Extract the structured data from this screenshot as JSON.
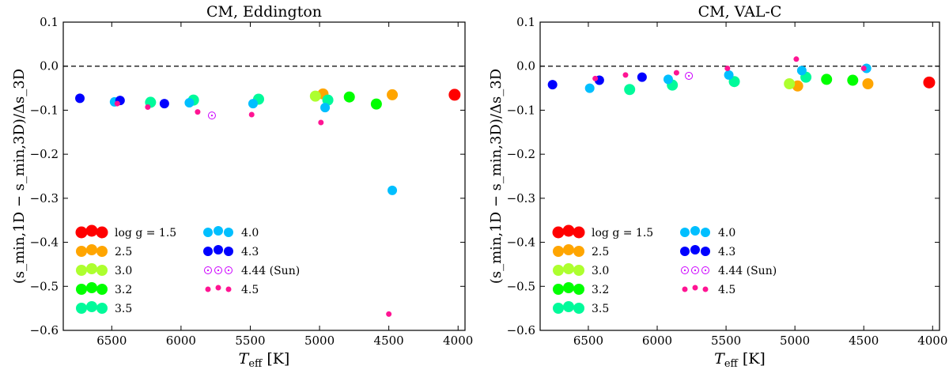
{
  "chart_data": [
    {
      "type": "scatter",
      "title": "CM, Eddington",
      "xlabel": "T_eff [K]",
      "xlabel_main": "T",
      "xlabel_sub": "eff",
      "xlabel_unit": " [K]",
      "ylabel": "(s_min,1D − s_min,3D)/Δs_3D",
      "xlim": [
        6850,
        3950
      ],
      "ylim": [
        -0.6,
        0.1
      ],
      "xticks": [
        6500,
        6000,
        5500,
        5000,
        4500,
        4000
      ],
      "yticks": [
        0.1,
        0.0,
        -0.1,
        -0.2,
        -0.3,
        -0.4,
        -0.5,
        -0.6
      ],
      "xtick_labels": [
        "6500",
        "6000",
        "5500",
        "5000",
        "4500",
        "4000"
      ],
      "ytick_labels": [
        "0.1",
        "0.0",
        "−0.1",
        "−0.2",
        "−0.3",
        "−0.4",
        "−0.5",
        "−0.6"
      ],
      "reference_line": 0.0,
      "points": [
        {
          "teff": 4025,
          "logg": "1.5",
          "y": -0.065
        },
        {
          "teff": 4975,
          "logg": "2.5",
          "y": -0.063
        },
        {
          "teff": 4475,
          "logg": "2.5",
          "y": -0.065
        },
        {
          "teff": 5030,
          "logg": "3.0",
          "y": -0.068
        },
        {
          "teff": 4785,
          "logg": "3.2",
          "y": -0.07
        },
        {
          "teff": 4590,
          "logg": "3.2",
          "y": -0.086
        },
        {
          "teff": 6220,
          "logg": "3.5",
          "y": -0.082
        },
        {
          "teff": 5910,
          "logg": "3.5",
          "y": -0.077
        },
        {
          "teff": 5440,
          "logg": "3.5",
          "y": -0.075
        },
        {
          "teff": 4940,
          "logg": "3.5",
          "y": -0.077
        },
        {
          "teff": 6480,
          "logg": "4.0",
          "y": -0.081
        },
        {
          "teff": 5940,
          "logg": "4.0",
          "y": -0.083
        },
        {
          "teff": 5480,
          "logg": "4.0",
          "y": -0.085
        },
        {
          "teff": 4960,
          "logg": "4.0",
          "y": -0.094
        },
        {
          "teff": 4475,
          "logg": "4.0",
          "y": -0.282
        },
        {
          "teff": 6730,
          "logg": "4.3",
          "y": -0.073
        },
        {
          "teff": 6440,
          "logg": "4.3",
          "y": -0.078
        },
        {
          "teff": 6120,
          "logg": "4.3",
          "y": -0.085
        },
        {
          "teff": 5777,
          "logg": "4.44",
          "y": -0.112
        },
        {
          "teff": 6460,
          "logg": "4.5",
          "y": -0.085
        },
        {
          "teff": 6240,
          "logg": "4.5",
          "y": -0.093
        },
        {
          "teff": 5880,
          "logg": "4.5",
          "y": -0.104
        },
        {
          "teff": 5490,
          "logg": "4.5",
          "y": -0.11
        },
        {
          "teff": 4990,
          "logg": "4.5",
          "y": -0.128
        },
        {
          "teff": 4500,
          "logg": "4.5",
          "y": -0.563
        }
      ]
    },
    {
      "type": "scatter",
      "title": "CM, VAL-C",
      "xlabel": "T_eff [K]",
      "xlabel_main": "T",
      "xlabel_sub": "eff",
      "xlabel_unit": " [K]",
      "ylabel": "(s_min,1D − s_min,3D)/Δs_3D",
      "xlim": [
        6850,
        3950
      ],
      "ylim": [
        -0.6,
        0.1
      ],
      "xticks": [
        6500,
        6000,
        5500,
        5000,
        4500,
        4000
      ],
      "yticks": [
        0.1,
        0.0,
        -0.1,
        -0.2,
        -0.3,
        -0.4,
        -0.5,
        -0.6
      ],
      "xtick_labels": [
        "6500",
        "6000",
        "5500",
        "5000",
        "4500",
        "4000"
      ],
      "ytick_labels": [
        "0.1",
        "0.0",
        "−0.1",
        "−0.2",
        "−0.3",
        "−0.4",
        "−0.5",
        "−0.6"
      ],
      "reference_line": 0.0,
      "points": [
        {
          "teff": 4025,
          "logg": "1.5",
          "y": -0.037
        },
        {
          "teff": 4980,
          "logg": "2.5",
          "y": -0.045
        },
        {
          "teff": 4470,
          "logg": "2.5",
          "y": -0.04
        },
        {
          "teff": 5040,
          "logg": "3.0",
          "y": -0.04
        },
        {
          "teff": 4770,
          "logg": "3.2",
          "y": -0.03
        },
        {
          "teff": 4580,
          "logg": "3.2",
          "y": -0.032
        },
        {
          "teff": 6200,
          "logg": "3.5",
          "y": -0.053
        },
        {
          "teff": 5890,
          "logg": "3.5",
          "y": -0.043
        },
        {
          "teff": 5440,
          "logg": "3.5",
          "y": -0.035
        },
        {
          "teff": 4920,
          "logg": "3.5",
          "y": -0.025
        },
        {
          "teff": 6490,
          "logg": "4.0",
          "y": -0.05
        },
        {
          "teff": 5920,
          "logg": "4.0",
          "y": -0.03
        },
        {
          "teff": 5480,
          "logg": "4.0",
          "y": -0.02
        },
        {
          "teff": 4950,
          "logg": "4.0",
          "y": -0.01
        },
        {
          "teff": 4480,
          "logg": "4.0",
          "y": -0.005
        },
        {
          "teff": 6760,
          "logg": "4.3",
          "y": -0.042
        },
        {
          "teff": 6420,
          "logg": "4.3",
          "y": -0.032
        },
        {
          "teff": 6110,
          "logg": "4.3",
          "y": -0.025
        },
        {
          "teff": 5770,
          "logg": "4.44",
          "y": -0.022
        },
        {
          "teff": 6450,
          "logg": "4.5",
          "y": -0.028
        },
        {
          "teff": 6230,
          "logg": "4.5",
          "y": -0.02
        },
        {
          "teff": 5860,
          "logg": "4.5",
          "y": -0.015
        },
        {
          "teff": 5490,
          "logg": "4.5",
          "y": -0.005
        },
        {
          "teff": 4990,
          "logg": "4.5",
          "y": 0.016
        },
        {
          "teff": 4500,
          "logg": "4.5",
          "y": -0.005
        }
      ]
    }
  ],
  "legend": {
    "placement": "lower-left",
    "entries": [
      {
        "logg": "1.5",
        "label": "log g = 1.5",
        "color": "#ff0000",
        "marker": "filled",
        "size": "xl"
      },
      {
        "logg": "2.5",
        "label": "2.5",
        "color": "#ffa500",
        "marker": "filled",
        "size": "lg"
      },
      {
        "logg": "3.0",
        "label": "3.0",
        "color": "#adff2f",
        "marker": "filled",
        "size": "lg"
      },
      {
        "logg": "3.2",
        "label": "3.2",
        "color": "#00ff00",
        "marker": "filled",
        "size": "lg"
      },
      {
        "logg": "3.5",
        "label": "3.5",
        "color": "#00fa9a",
        "marker": "filled",
        "size": "lg"
      },
      {
        "logg": "4.0",
        "label": "4.0",
        "color": "#00bfff",
        "marker": "filled",
        "size": "md"
      },
      {
        "logg": "4.3",
        "label": "4.3",
        "color": "#0000ff",
        "marker": "filled",
        "size": "md"
      },
      {
        "logg": "4.44",
        "label": "4.44 (Sun)",
        "color": "#cc00ff",
        "marker": "sun",
        "size": "md"
      },
      {
        "logg": "4.5",
        "label": "4.5",
        "color": "#ff1493",
        "marker": "filled",
        "size": "sm"
      }
    ]
  }
}
